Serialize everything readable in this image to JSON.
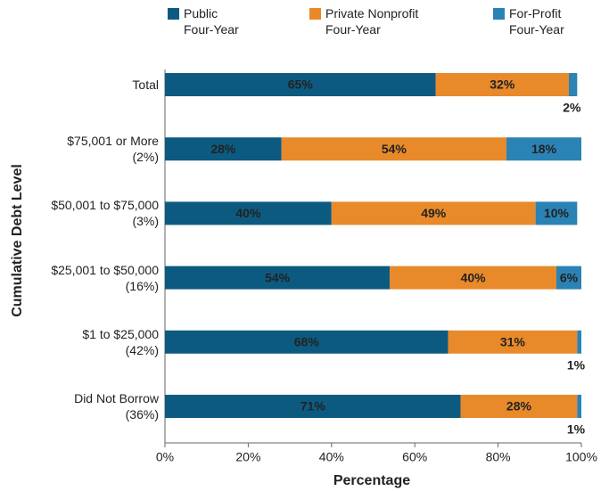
{
  "chart_data": {
    "type": "stacked-bar-horizontal",
    "x_label": "Percentage",
    "y_label": "Cumulative Debt Level",
    "categories": [
      "Total",
      "$75,001 or More\n(2%)",
      "$50,001 to $75,000\n(3%)",
      "$25,001 to $50,000\n(16%)",
      "$1 to $25,000\n(42%)",
      "Did Not Borrow\n(36%)"
    ],
    "series": [
      {
        "name": "Public\nFour-Year",
        "color": "#0d5a80",
        "label_color": "#ffffff",
        "values": [
          65,
          28,
          40,
          54,
          68,
          71
        ],
        "value_labels": [
          "65%",
          "28%",
          "40%",
          "54%",
          "68%",
          "71%"
        ]
      },
      {
        "name": "Private Nonprofit\nFour-Year",
        "color": "#e8892a",
        "label_color": "#222222",
        "values": [
          32,
          54,
          49,
          40,
          31,
          28
        ],
        "value_labels": [
          "32%",
          "54%",
          "49%",
          "40%",
          "31%",
          "28%"
        ]
      },
      {
        "name": "For-Profit\nFour-Year",
        "color": "#2b82b4",
        "label_color": "#ffffff",
        "values": [
          2,
          18,
          10,
          6,
          1,
          1
        ],
        "value_labels": [
          "2%",
          "18%",
          "10%",
          "6%",
          "1%",
          "1%"
        ]
      }
    ],
    "xlim": [
      0,
      100
    ],
    "xticks": [
      {
        "value": 0,
        "label": "0%"
      },
      {
        "value": 20,
        "label": "20%"
      },
      {
        "value": 40,
        "label": "40%"
      },
      {
        "value": 60,
        "label": "60%"
      },
      {
        "value": 80,
        "label": "80%"
      },
      {
        "value": 100,
        "label": "100%"
      }
    ],
    "legend": "top"
  }
}
